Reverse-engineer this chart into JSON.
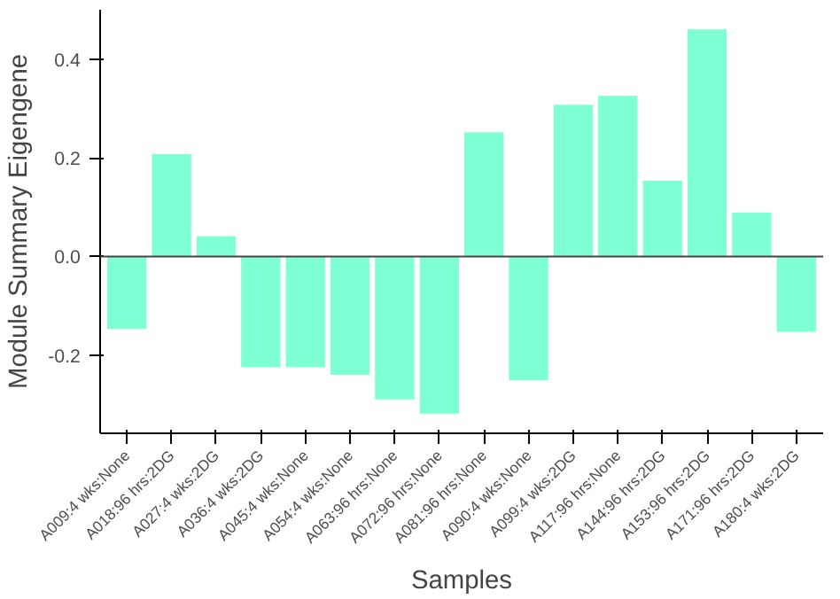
{
  "chart_data": {
    "type": "bar",
    "xlabel": "Samples",
    "ylabel": "Module Summary Eigengene",
    "categories": [
      "A009:4 wks:None",
      "A018:96 hrs:2DG",
      "A027:4 wks:2DG",
      "A036:4 wks:2DG",
      "A045:4 wks:None",
      "A054:4 wks:None",
      "A063:96 hrs:None",
      "A072:96 hrs:None",
      "A081:96 hrs:None",
      "A090:4 wks:None",
      "A099:4 wks:2DG",
      "A117:96 hrs:None",
      "A144:96 hrs:2DG",
      "A153:96 hrs:2DG",
      "A171:96 hrs:2DG",
      "A180:4 wks:2DG"
    ],
    "values": [
      -0.148,
      0.209,
      0.042,
      -0.226,
      -0.226,
      -0.241,
      -0.291,
      -0.32,
      0.253,
      -0.252,
      0.309,
      0.327,
      0.155,
      0.462,
      0.09,
      -0.154
    ],
    "color": "#7fffd4",
    "ylim": [
      -0.359,
      0.501
    ],
    "yticks": [
      {
        "value": -0.2,
        "label": "-0.2"
      },
      {
        "value": 0,
        "label": "0.0"
      },
      {
        "value": 0.2,
        "label": "0.2"
      },
      {
        "value": 0.4,
        "label": "0.4"
      }
    ],
    "ref_lines": [
      {
        "axis": "y",
        "value": 0,
        "color": "#444444"
      }
    ],
    "grid": false
  }
}
